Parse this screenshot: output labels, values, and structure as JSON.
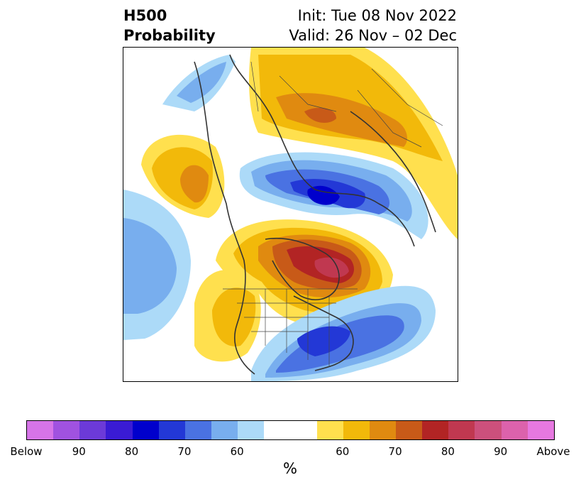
{
  "title": {
    "left_line1": "H500",
    "left_line2": "Probability",
    "right_line1": "Init: Tue 08 Nov 2022",
    "right_line2": "Valid: 26 Nov – 02 Dec"
  },
  "colorbar": {
    "colors": [
      "#d674e8",
      "#a052e0",
      "#6c3ad8",
      "#3a1bd4",
      "#0000cc",
      "#2338d6",
      "#4a72e2",
      "#78aeee",
      "#acdaf8",
      "#ffffff",
      "#ffe04e",
      "#f2b90a",
      "#e08a10",
      "#c85a18",
      "#b22424",
      "#c03850",
      "#cc507c",
      "#dc62ac",
      "#e678e0"
    ],
    "widths": [
      1,
      1,
      1,
      1,
      1,
      1,
      1,
      1,
      1,
      2,
      1,
      1,
      1,
      1,
      1,
      1,
      1,
      1,
      1
    ],
    "tick_labels": [
      "Below",
      "90",
      "80",
      "70",
      "60",
      "60",
      "70",
      "80",
      "90",
      "Above"
    ],
    "unit": "%"
  },
  "map": {
    "description_colors": {
      "below": "#4a72e2",
      "above": "#f2b90a",
      "coast": "#333333"
    }
  }
}
